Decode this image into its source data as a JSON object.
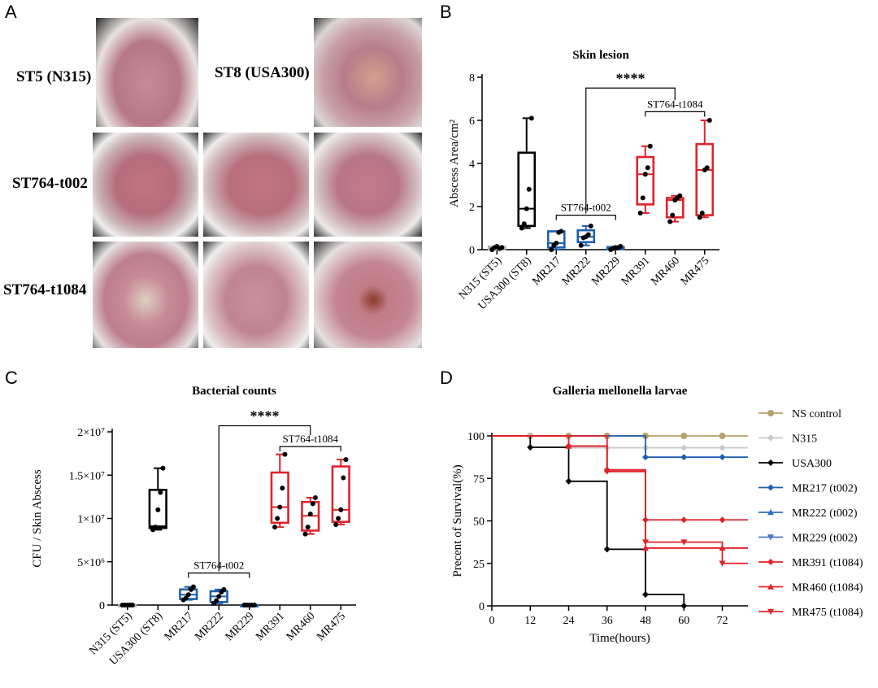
{
  "panels": {
    "a": {
      "letter": "A",
      "labels": [
        "ST5 (N315)",
        "ST8 (USA300)",
        "ST764-t002",
        "ST764-t1084"
      ]
    },
    "b": {
      "letter": "B"
    },
    "c": {
      "letter": "C"
    },
    "d": {
      "letter": "D"
    }
  },
  "colors": {
    "black": "#000000",
    "blue": "#1f5fb0",
    "red": "#e0222a",
    "gray": "#b0b0b0",
    "tan": "#b5a36a"
  },
  "chart_data": [
    {
      "id": "skin",
      "type": "box",
      "title": "Skin lesion",
      "ylabel": "Abscess Area/cm²",
      "ylim": [
        0,
        8
      ],
      "yticks": [
        0,
        2,
        4,
        6,
        8
      ],
      "categories": [
        "N315 (ST5)",
        "USA300 (ST8)",
        "MR217",
        "MR222",
        "MR229",
        "MR391",
        "MR460",
        "MR475"
      ],
      "box_colors": [
        "#b0b0b0",
        "#000000",
        "#1f5fb0",
        "#1f5fb0",
        "#1f5fb0",
        "#e0222a",
        "#e0222a",
        "#e0222a"
      ],
      "points": [
        [
          0.0,
          0.1,
          0.15,
          0.05,
          0.1
        ],
        [
          1.0,
          1.2,
          1.9,
          2.8,
          6.1
        ],
        [
          0.0,
          0.2,
          0.3,
          0.8,
          0.85
        ],
        [
          0.2,
          0.55,
          0.6,
          0.7,
          1.1
        ],
        [
          0.0,
          0.05,
          0.1,
          0.1,
          0.15
        ],
        [
          1.7,
          2.4,
          3.5,
          3.8,
          4.8
        ],
        [
          1.3,
          1.6,
          2.3,
          2.4,
          2.5
        ],
        [
          1.5,
          1.7,
          3.7,
          3.8,
          6.0
        ]
      ],
      "boxes": [
        {
          "min": 0.0,
          "q1": 0.02,
          "median": 0.1,
          "q3": 0.14,
          "max": 0.15
        },
        {
          "min": 1.0,
          "q1": 1.1,
          "median": 1.9,
          "q3": 4.5,
          "max": 6.1
        },
        {
          "min": 0.0,
          "q1": 0.1,
          "median": 0.3,
          "q3": 0.85,
          "max": 0.85
        },
        {
          "min": 0.2,
          "q1": 0.35,
          "median": 0.6,
          "q3": 0.9,
          "max": 1.1
        },
        {
          "min": 0.0,
          "q1": 0.03,
          "median": 0.1,
          "q3": 0.12,
          "max": 0.15
        },
        {
          "min": 1.7,
          "q1": 2.1,
          "median": 3.5,
          "q3": 4.3,
          "max": 4.8
        },
        {
          "min": 1.3,
          "q1": 1.5,
          "median": 2.3,
          "q3": 2.4,
          "max": 2.5
        },
        {
          "min": 1.5,
          "q1": 1.6,
          "median": 3.7,
          "q3": 4.9,
          "max": 6.0
        }
      ],
      "brackets": [
        {
          "label": "ST764-t002",
          "from": 2,
          "to": 4,
          "y": 1.6
        },
        {
          "label": "ST764-t1084",
          "from": 5,
          "to": 7,
          "y": 6.4
        }
      ],
      "significance": {
        "label": "****",
        "from": 3,
        "to": 6,
        "y": 7.5
      }
    },
    {
      "id": "cfu",
      "type": "box",
      "title": "Bacterial counts",
      "ylabel": "CFU / Skin Abscess",
      "ylim": [
        0,
        20000000
      ],
      "yticks": [
        0,
        5000000,
        10000000,
        15000000,
        20000000
      ],
      "ytick_labels": [
        "0",
        "5×10⁶",
        "1×10⁷",
        "1.5×10⁷",
        "2×10⁷"
      ],
      "categories": [
        "N315 (ST5)",
        "USA300 (ST8)",
        "MR217",
        "MR222",
        "MR229",
        "MR391",
        "MR460",
        "MR475"
      ],
      "box_colors": [
        "#b0b0b0",
        "#000000",
        "#1f5fb0",
        "#1f5fb0",
        "#1f5fb0",
        "#e0222a",
        "#e0222a",
        "#e0222a"
      ],
      "points": [
        [
          0,
          0,
          0,
          0,
          0
        ],
        [
          8700000,
          9000000,
          11000000,
          13000000,
          15800000
        ],
        [
          600000,
          800000,
          1200000,
          1800000,
          2100000
        ],
        [
          200000,
          500000,
          1000000,
          1500000,
          1800000
        ],
        [
          0,
          0,
          0,
          0,
          0
        ],
        [
          9000000,
          10000000,
          11300000,
          13500000,
          17400000
        ],
        [
          8200000,
          9000000,
          10500000,
          11700000,
          12400000
        ],
        [
          9300000,
          10000000,
          11000000,
          14700000,
          16800000
        ]
      ],
      "boxes": [
        {
          "min": 0,
          "q1": 0,
          "median": 0,
          "q3": 0,
          "max": 0
        },
        {
          "min": 8700000,
          "q1": 8900000,
          "median": 9100000,
          "q3": 13300000,
          "max": 15800000
        },
        {
          "min": 600000,
          "q1": 700000,
          "median": 1200000,
          "q3": 1800000,
          "max": 2100000
        },
        {
          "min": 200000,
          "q1": 350000,
          "median": 1000000,
          "q3": 1600000,
          "max": 1800000
        },
        {
          "min": 0,
          "q1": 0,
          "median": 0,
          "q3": 0,
          "max": 0
        },
        {
          "min": 9000000,
          "q1": 9500000,
          "median": 11300000,
          "q3": 15300000,
          "max": 17400000
        },
        {
          "min": 8200000,
          "q1": 8600000,
          "median": 10300000,
          "q3": 11900000,
          "max": 12400000
        },
        {
          "min": 9300000,
          "q1": 9600000,
          "median": 11000000,
          "q3": 16000000,
          "max": 16800000
        }
      ],
      "brackets": [
        {
          "label": "ST764-t002",
          "from": 2,
          "to": 4,
          "y": 3700000
        },
        {
          "label": "ST764-t1084",
          "from": 5,
          "to": 7,
          "y": 18300000
        }
      ],
      "significance": {
        "label": "****",
        "from": 3,
        "to": 6,
        "y": 20700000
      }
    },
    {
      "id": "survival",
      "type": "line",
      "title": "Galleria mellonella larvae",
      "xlabel": "Time(hours)",
      "ylabel": "Precent of Survival(%)",
      "xlim": [
        0,
        80
      ],
      "ylim": [
        0,
        100
      ],
      "xticks": [
        0,
        12,
        24,
        36,
        48,
        60,
        72
      ],
      "yticks": [
        0,
        25,
        50,
        75,
        100
      ],
      "series": [
        {
          "name": "NS control",
          "color": "#b5a36a",
          "marker": "circle",
          "steps": [
            [
              0,
              100
            ],
            [
              80,
              100
            ]
          ],
          "markers": [
            [
              12,
              100
            ],
            [
              24,
              100
            ],
            [
              36,
              100
            ],
            [
              48,
              100
            ],
            [
              60,
              100
            ],
            [
              72,
              100
            ]
          ]
        },
        {
          "name": "N315",
          "color": "#c8c8c8",
          "marker": "diamond",
          "steps": [
            [
              0,
              100
            ],
            [
              24,
              100
            ],
            [
              24,
              93
            ],
            [
              80,
              93
            ]
          ],
          "markers": [
            [
              12,
              100
            ],
            [
              36,
              93
            ],
            [
              48,
              93
            ],
            [
              60,
              93
            ],
            [
              72,
              93
            ]
          ]
        },
        {
          "name": "USA300",
          "color": "#000000",
          "marker": "diamond",
          "steps": [
            [
              0,
              100
            ],
            [
              12,
              100
            ],
            [
              12,
              93.3
            ],
            [
              24,
              93.3
            ],
            [
              24,
              73.3
            ],
            [
              36,
              73.3
            ],
            [
              36,
              33.3
            ],
            [
              48,
              33.3
            ],
            [
              48,
              6.7
            ],
            [
              60,
              6.7
            ],
            [
              60,
              0
            ]
          ],
          "markers": [
            [
              12,
              93.3
            ],
            [
              24,
              73.3
            ],
            [
              36,
              33.3
            ],
            [
              48,
              6.7
            ],
            [
              60,
              0
            ]
          ]
        },
        {
          "name": "MR217 (t002)",
          "color": "#1f5fb0",
          "marker": "diamond",
          "steps": [
            [
              0,
              100
            ],
            [
              48,
              100
            ],
            [
              48,
              87.5
            ],
            [
              80,
              87.5
            ]
          ],
          "markers": [
            [
              48,
              87.5
            ],
            [
              60,
              87.5
            ],
            [
              72,
              87.5
            ]
          ]
        },
        {
          "name": "MR222 (t002)",
          "color": "#2f6fc0",
          "marker": "triangle",
          "steps": [],
          "markers": []
        },
        {
          "name": "MR229 (t002)",
          "color": "#4a74c8",
          "marker": "triangle-down",
          "steps": [],
          "markers": []
        },
        {
          "name": "MR391 (t1084)",
          "color": "#e0222a",
          "marker": "diamond",
          "steps": [
            [
              0,
              100
            ],
            [
              24,
              100
            ],
            [
              24,
              94
            ],
            [
              36,
              94
            ],
            [
              36,
              80
            ],
            [
              48,
              80
            ],
            [
              48,
              50.6
            ],
            [
              80,
              50.6
            ]
          ],
          "markers": [
            [
              24,
              94
            ],
            [
              36,
              80
            ],
            [
              48,
              50.6
            ],
            [
              60,
              50.6
            ],
            [
              72,
              50.6
            ]
          ]
        },
        {
          "name": "MR460 (t1084)",
          "color": "#e0222a",
          "marker": "triangle",
          "steps": [
            [
              0,
              100
            ],
            [
              24,
              100
            ],
            [
              24,
              94
            ],
            [
              36,
              94
            ],
            [
              36,
              80
            ],
            [
              48,
              80
            ],
            [
              48,
              34
            ],
            [
              80,
              34
            ]
          ],
          "markers": [
            [
              24,
              94
            ],
            [
              36,
              80
            ],
            [
              48,
              34
            ],
            [
              72,
              34
            ]
          ]
        },
        {
          "name": "MR475 (t1084)",
          "color": "#e0222a",
          "marker": "triangle-down",
          "steps": [
            [
              0,
              100
            ],
            [
              36,
              100
            ],
            [
              36,
              79
            ],
            [
              48,
              79
            ],
            [
              48,
              37.5
            ],
            [
              60,
              37.5
            ],
            [
              72,
              37.5
            ],
            [
              72,
              25
            ],
            [
              80,
              25
            ]
          ],
          "markers": [
            [
              36,
              79
            ],
            [
              48,
              37.5
            ],
            [
              60,
              37.5
            ],
            [
              72,
              25
            ]
          ]
        }
      ]
    }
  ]
}
